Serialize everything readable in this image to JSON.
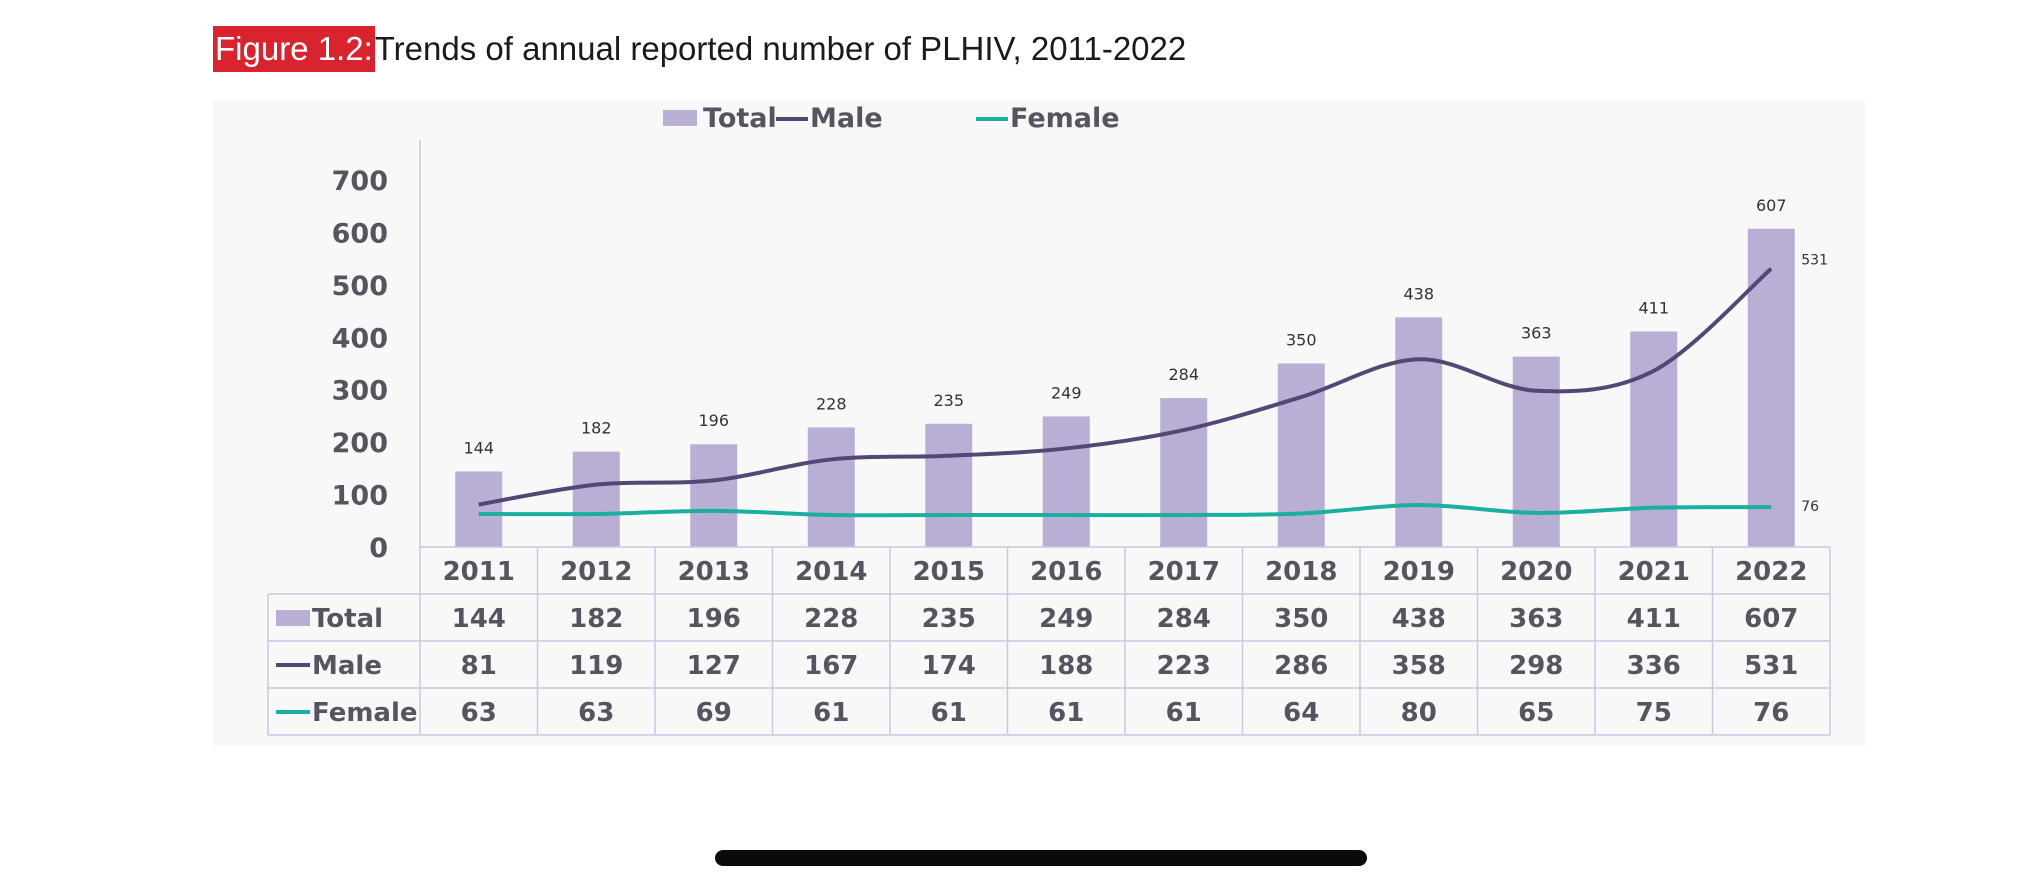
{
  "caption": {
    "label": "Figure 1.2:",
    "text": "Trends of annual reported number of PLHIV, 2011-2022"
  },
  "chart_data": {
    "type": "bar",
    "title": "",
    "categories": [
      "2011",
      "2012",
      "2013",
      "2014",
      "2015",
      "2016",
      "2017",
      "2018",
      "2019",
      "2020",
      "2021",
      "2022"
    ],
    "ylim": [
      0,
      700
    ],
    "yticks": [
      0,
      100,
      200,
      300,
      400,
      500,
      600,
      700
    ],
    "grid": false,
    "legend_position": "top-center",
    "series": [
      {
        "name": "Total",
        "kind": "bar",
        "color": "#b9aed4",
        "values": [
          144,
          182,
          196,
          228,
          235,
          249,
          284,
          350,
          438,
          363,
          411,
          607
        ]
      },
      {
        "name": "Male",
        "kind": "line",
        "color": "#554775",
        "values": [
          81,
          119,
          127,
          167,
          174,
          188,
          223,
          286,
          358,
          298,
          336,
          531
        ]
      },
      {
        "name": "Female",
        "kind": "line",
        "color": "#1aaf9f",
        "values": [
          63,
          63,
          69,
          61,
          61,
          61,
          61,
          64,
          80,
          65,
          75,
          76
        ]
      }
    ],
    "annotations": [
      "531",
      "76"
    ],
    "data_table": true
  }
}
